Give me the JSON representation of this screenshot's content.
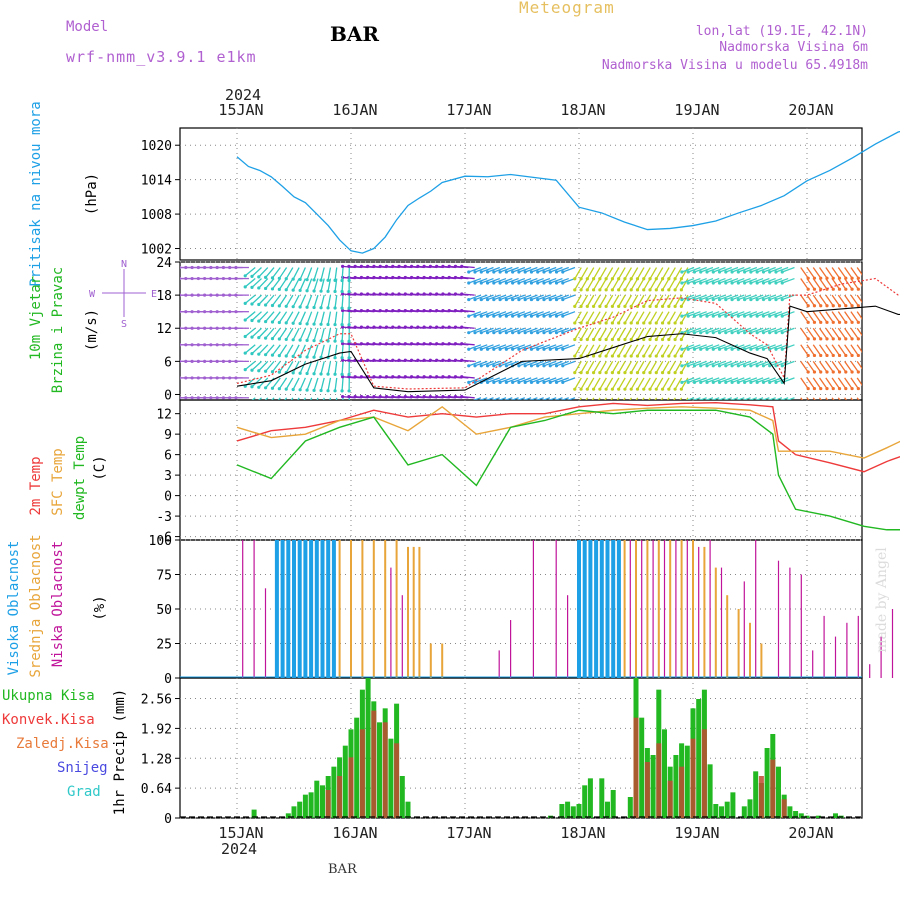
{
  "header": {
    "model_label": "Model",
    "model_name": "wrf-nmm_v3.9.1 e1km",
    "station": "BAR",
    "product": "Meteogram",
    "lonlat": "lon,lat (19.1E, 42.1N)",
    "elev": "Nadmorska Visina 6m",
    "elev_model": "Nadmorska Visina u modelu 65.4918m",
    "footer_station": "BAR",
    "watermark": "made by Angel"
  },
  "colors": {
    "cyan": "#1ea0e6",
    "green": "#22b822",
    "red": "#ee3a3a",
    "orange": "#e8a53a",
    "magenta": "#c0149a",
    "purple": "#a060d0",
    "blue": "#3030d0",
    "olive": "#6a8a2a",
    "gold": "#e6c060"
  },
  "time_axis": {
    "year": "2024",
    "days": [
      "15JAN",
      "16JAN",
      "17JAN",
      "18JAN",
      "19JAN",
      "20JAN"
    ]
  },
  "chart_data": [
    {
      "type": "line",
      "panel": "pressure",
      "ylabel": "Pritisak na nivou mora",
      "unit": "(hPa)",
      "yticks": [
        1002,
        1008,
        1014,
        1020
      ],
      "ylim": [
        1000,
        1023
      ],
      "series": [
        {
          "name": "",
          "x": [
            0,
            0.1,
            0.2,
            0.3,
            0.4,
            0.5,
            0.6,
            0.7,
            0.8,
            0.9,
            1.0,
            1.1,
            1.2,
            1.3,
            1.4,
            1.5,
            1.6,
            1.7,
            1.8,
            2.0,
            2.2,
            2.4,
            2.6,
            2.8,
            3.0,
            3.2,
            3.4,
            3.6,
            3.8,
            4.0,
            4.2,
            4.4,
            4.6,
            4.8,
            5.0,
            5.2,
            5.4,
            5.6,
            5.8,
            5.95
          ],
          "values": [
            1018,
            1016.3,
            1015.6,
            1014.5,
            1012.8,
            1011,
            1010,
            1008,
            1006,
            1003.5,
            1001.6,
            1001.2,
            1002,
            1004,
            1007,
            1009.5,
            1010.8,
            1012,
            1013.5,
            1014.6,
            1014.5,
            1014.9,
            1014.4,
            1013.9,
            1009.2,
            1008.2,
            1006.6,
            1005.3,
            1005.5,
            1006,
            1006.8,
            1008.2,
            1009.5,
            1011.2,
            1013.8,
            1015.6,
            1017.8,
            1020.2,
            1022.3,
            1023
          ]
        }
      ]
    },
    {
      "type": "line",
      "panel": "wind",
      "ylabel": [
        "10m Vjetar",
        "Brzina i Pravac"
      ],
      "unit": "(m/s)",
      "compass": [
        "N",
        "W",
        "E",
        "S"
      ],
      "yticks": [
        0,
        6,
        12,
        18,
        24
      ],
      "ylim": [
        -1,
        24
      ],
      "series": [
        {
          "name": "speed",
          "x": [
            0,
            0.3,
            0.6,
            0.9,
            1.0,
            1.2,
            1.5,
            2.0,
            2.5,
            3.0,
            3.3,
            3.6,
            3.9,
            4.2,
            4.5,
            4.65,
            4.8,
            4.85,
            5.0,
            5.3,
            5.6,
            5.8,
            5.95
          ],
          "values": [
            1.5,
            2.5,
            5.5,
            7.5,
            7.8,
            1.2,
            0.5,
            0.8,
            6,
            6.5,
            8.5,
            10.5,
            11,
            10.3,
            7.5,
            6.5,
            2,
            16,
            15,
            15.5,
            16,
            14.5,
            14.5
          ]
        },
        {
          "name": "gust",
          "x": [
            0,
            0.3,
            0.6,
            0.9,
            1.0,
            1.2,
            1.5,
            2.0,
            2.5,
            3.0,
            3.3,
            3.6,
            3.9,
            4.2,
            4.5,
            4.65,
            4.8,
            4.85,
            5.0,
            5.3,
            5.6,
            5.8,
            5.95
          ],
          "values": [
            2,
            3.5,
            8,
            11,
            11,
            1.5,
            1,
            1.2,
            8,
            12,
            14,
            17,
            17.5,
            16.5,
            11,
            9,
            3,
            18,
            18,
            20,
            21,
            18,
            17
          ]
        }
      ],
      "arrow_rows": [
        -0.6,
        3,
        6,
        9,
        12,
        15,
        18,
        21,
        23
      ]
    },
    {
      "type": "line",
      "panel": "temperature",
      "ylabel": [
        "2m Temp",
        "SFC Temp",
        "dewpt Temp"
      ],
      "unit": "(C)",
      "yticks": [
        -6,
        -3,
        0,
        3,
        6,
        9,
        12
      ],
      "ylim": [
        -6.5,
        14
      ],
      "series": [
        {
          "name": "2m Temp",
          "x": [
            0,
            0.3,
            0.6,
            0.9,
            1.2,
            1.5,
            1.8,
            2.1,
            2.4,
            2.7,
            3.0,
            3.3,
            3.6,
            3.9,
            4.2,
            4.5,
            4.7,
            4.75,
            4.9,
            5.2,
            5.5,
            5.7,
            5.95
          ],
          "values": [
            8,
            9.5,
            10,
            11,
            12.5,
            11.5,
            12,
            11.5,
            12,
            12,
            13,
            13.5,
            13.2,
            13.5,
            13.6,
            13.3,
            13,
            8,
            6,
            4.8,
            3.5,
            5,
            6.5
          ]
        },
        {
          "name": "SFC Temp",
          "x": [
            0,
            0.3,
            0.6,
            0.9,
            1.2,
            1.5,
            1.8,
            2.1,
            2.4,
            2.7,
            3.0,
            3.3,
            3.6,
            3.9,
            4.2,
            4.5,
            4.7,
            4.75,
            4.9,
            5.2,
            5.5,
            5.7,
            5.95
          ],
          "values": [
            10,
            8.5,
            9,
            11,
            11.5,
            9.5,
            13,
            9,
            10,
            11.5,
            12,
            12.5,
            12.8,
            13,
            12.8,
            12.5,
            11,
            6.5,
            6.5,
            6.5,
            5.5,
            7,
            9
          ]
        },
        {
          "name": "dewpt Temp",
          "x": [
            0,
            0.3,
            0.6,
            0.9,
            1.2,
            1.5,
            1.8,
            2.1,
            2.4,
            2.7,
            3.0,
            3.3,
            3.6,
            3.9,
            4.2,
            4.5,
            4.7,
            4.75,
            4.9,
            5.2,
            5.5,
            5.7,
            5.95
          ],
          "values": [
            4.5,
            2.5,
            8,
            10,
            11.5,
            4.5,
            6,
            1.5,
            10,
            11,
            12.5,
            12,
            12.5,
            12.5,
            12.5,
            11.5,
            9,
            3,
            -2,
            -3,
            -4.5,
            -5,
            -5
          ]
        }
      ]
    },
    {
      "type": "bar",
      "panel": "clouds",
      "ylabel": [
        "Visoka Oblacnost",
        "Srednja Oblacnost",
        "Niska Oblacnost"
      ],
      "unit": "(%)",
      "yticks": [
        0,
        25,
        50,
        75,
        100
      ],
      "ylim": [
        0,
        100
      ],
      "series": [
        {
          "name": "Visoka Oblacnost",
          "x": [
            0.35,
            0.4,
            0.45,
            0.5,
            0.55,
            0.6,
            0.65,
            0.7,
            0.75,
            0.8,
            0.85,
            3.0,
            3.05,
            3.1,
            3.15,
            3.2,
            3.25,
            3.3,
            3.35
          ],
          "values": [
            100,
            100,
            100,
            100,
            100,
            100,
            100,
            100,
            100,
            100,
            100,
            100,
            100,
            100,
            100,
            100,
            100,
            100,
            100
          ]
        },
        {
          "name": "Srednja Oblacnost",
          "x": [
            0.9,
            1.0,
            1.1,
            1.2,
            1.3,
            1.4,
            1.5,
            1.55,
            1.6,
            1.7,
            1.8,
            1.9,
            2.0,
            3.4,
            3.5,
            3.6,
            3.7,
            3.8,
            3.9,
            4.0,
            4.1,
            4.2,
            4.3,
            4.4,
            4.5,
            4.6
          ],
          "values": [
            100,
            100,
            100,
            100,
            100,
            100,
            95,
            95,
            95,
            25,
            25,
            0,
            0,
            100,
            100,
            100,
            100,
            100,
            100,
            100,
            95,
            80,
            60,
            50,
            40,
            25
          ]
        },
        {
          "name": "Niska Oblacnost",
          "x": [
            0.05,
            0.15,
            0.25,
            1.35,
            1.45,
            2.3,
            2.4,
            2.6,
            2.8,
            2.9,
            3.45,
            3.55,
            3.65,
            3.75,
            3.85,
            3.95,
            4.05,
            4.15,
            4.25,
            4.45,
            4.55,
            4.75,
            4.85,
            4.95,
            5.05,
            5.15,
            5.25,
            5.35,
            5.45,
            5.55,
            5.65,
            5.75,
            5.85,
            5.95
          ],
          "values": [
            100,
            100,
            65,
            80,
            60,
            20,
            42,
            100,
            100,
            60,
            100,
            100,
            100,
            100,
            100,
            100,
            95,
            100,
            80,
            70,
            100,
            85,
            80,
            75,
            20,
            45,
            30,
            40,
            45,
            10,
            30,
            50,
            80,
            5
          ]
        }
      ]
    },
    {
      "type": "bar",
      "panel": "precip",
      "ylabel": "1hr Precip (mm)",
      "yticks": [
        0,
        0.64,
        1.28,
        1.92,
        2.56
      ],
      "ylim": [
        0,
        3.0
      ],
      "legend": [
        {
          "name": "Ukupna Kisa",
          "color": "#22b822"
        },
        {
          "name": "Konvek.Kisa",
          "color": "#ee3a3a"
        },
        {
          "name": "Zaledj.Kisa",
          "color": "#e87a3a"
        },
        {
          "name": "Snijeg",
          "color": "#4a4ae0"
        },
        {
          "name": "Grad",
          "color": "#30c8c8"
        }
      ],
      "series": [
        {
          "name": "Ukupna Kisa",
          "x": [
            0.15,
            0.45,
            0.5,
            0.55,
            0.6,
            0.65,
            0.7,
            0.75,
            0.8,
            0.85,
            0.9,
            0.95,
            1.0,
            1.05,
            1.1,
            1.15,
            1.2,
            1.25,
            1.3,
            1.35,
            1.4,
            1.45,
            1.5,
            2.75,
            2.85,
            2.9,
            2.95,
            3.0,
            3.05,
            3.1,
            3.2,
            3.25,
            3.3,
            3.45,
            3.5,
            3.55,
            3.6,
            3.65,
            3.7,
            3.75,
            3.8,
            3.85,
            3.9,
            3.95,
            4.0,
            4.05,
            4.1,
            4.15,
            4.2,
            4.25,
            4.3,
            4.35,
            4.45,
            4.5,
            4.55,
            4.6,
            4.65,
            4.7,
            4.75,
            4.8,
            4.85,
            4.9,
            4.95,
            5.0,
            5.1,
            5.25,
            5.3
          ],
          "values": [
            0.18,
            0.1,
            0.25,
            0.35,
            0.5,
            0.55,
            0.8,
            0.7,
            0.9,
            1.1,
            1.3,
            1.55,
            1.9,
            2.15,
            2.75,
            3.0,
            2.5,
            2.05,
            2.35,
            1.7,
            2.45,
            0.9,
            0.35,
            0.05,
            0.3,
            0.35,
            0.25,
            0.3,
            0.7,
            0.85,
            0.85,
            0.35,
            0.6,
            0.45,
            3.0,
            2.15,
            1.5,
            1.35,
            2.75,
            1.9,
            1.1,
            1.35,
            1.6,
            1.55,
            2.35,
            2.55,
            2.75,
            1.15,
            0.3,
            0.25,
            0.35,
            0.55,
            0.25,
            0.4,
            1.0,
            0.75,
            1.5,
            1.8,
            1.1,
            0.5,
            0.25,
            0.15,
            0.1,
            0.05,
            0.05,
            0.1,
            0.05
          ]
        },
        {
          "name": "Konvek.Kisa",
          "x": [
            0.8,
            0.9,
            1.0,
            1.1,
            1.2,
            1.3,
            1.4,
            3.5,
            3.6,
            3.7,
            3.8,
            3.9,
            4.0,
            4.1,
            4.6,
            4.7,
            4.8
          ],
          "values": [
            0.6,
            0.9,
            1.3,
            1.9,
            2.3,
            2.05,
            1.6,
            2.15,
            1.2,
            1.6,
            0.8,
            1.1,
            1.7,
            1.9,
            0.9,
            1.25,
            0.4
          ]
        }
      ]
    }
  ]
}
